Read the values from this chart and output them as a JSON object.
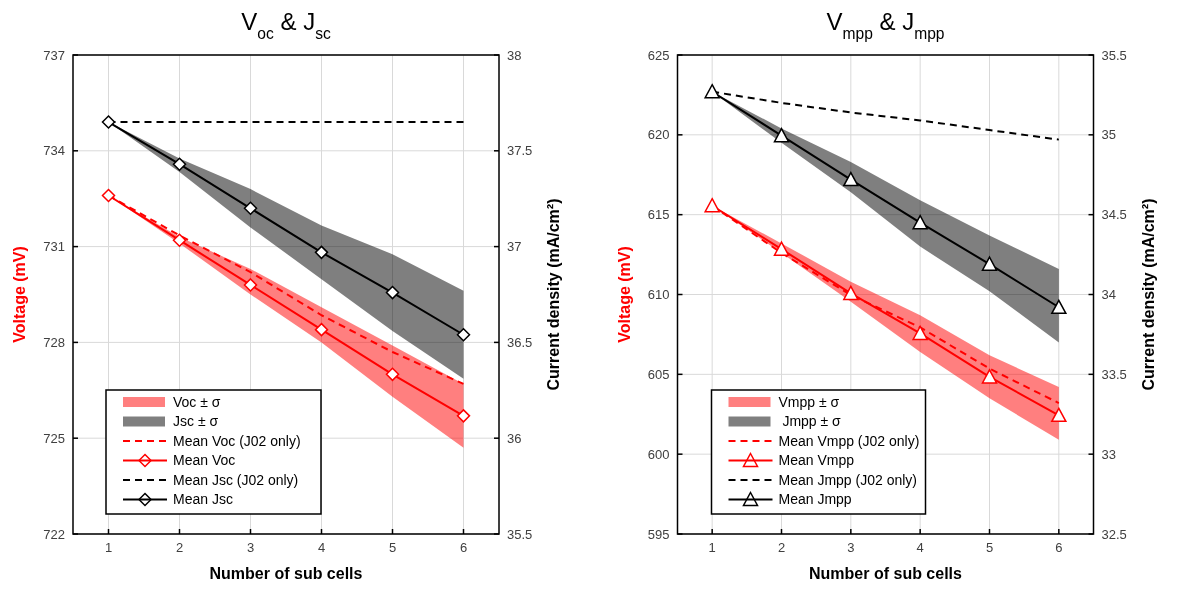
{
  "chart_data": [
    {
      "type": "line",
      "title": "V$_{oc}$ & J$_{sc}$",
      "xlabel": "Number of sub cells",
      "ylabel": "Voltage (mV)",
      "y2label": "Current density (mA/cm²)",
      "x": [
        1,
        2,
        3,
        4,
        5,
        6
      ],
      "xlim": [
        0.5,
        6.5
      ],
      "xticks": [
        1,
        2,
        3,
        4,
        5,
        6
      ],
      "ylim": [
        722,
        737
      ],
      "yticks": [
        722,
        725,
        728,
        731,
        734,
        737
      ],
      "y2lim": [
        35.5,
        38
      ],
      "y2ticks": [
        35.5,
        36,
        36.5,
        37,
        37.5,
        38
      ],
      "grid": true,
      "legend": "bottom left",
      "annotations": [
        "Voc ± σ",
        "Jsc ± σ"
      ],
      "series": [
        {
          "name": "Mean Voc (J02 only)",
          "type": "line",
          "color": "#ff0000",
          "line_style": "dashed",
          "marker": "none",
          "values": [
            732.6,
            731.35,
            730.2,
            728.85,
            727.7,
            726.7
          ]
        },
        {
          "name": "Mean Voc",
          "type": "line",
          "color": "#ff0000",
          "line_style": "solid",
          "marker": "diamond",
          "values": [
            732.6,
            731.2,
            729.8,
            728.4,
            727.0,
            725.7
          ],
          "lower": [
            732.6,
            731.1,
            729.5,
            728.0,
            726.3,
            724.7
          ],
          "upper": [
            732.6,
            731.3,
            730.3,
            729.1,
            727.9,
            726.7
          ]
        },
        {
          "name": "Mean Jsc (J02 only)",
          "type": "line",
          "axis": "y2",
          "color": "#000000",
          "line_style": "dashed",
          "marker": "none",
          "values": [
            37.65,
            37.65,
            37.65,
            37.65,
            37.65,
            37.65
          ]
        },
        {
          "name": "Mean Jsc",
          "type": "line",
          "axis": "y2",
          "color": "#000000",
          "line_style": "solid",
          "marker": "diamond",
          "values": [
            37.65,
            37.43,
            37.2,
            36.97,
            36.76,
            36.54
          ],
          "lower": [
            37.65,
            37.39,
            37.1,
            36.83,
            36.56,
            36.31
          ],
          "upper": [
            37.65,
            37.46,
            37.3,
            37.11,
            36.96,
            36.77
          ]
        }
      ]
    },
    {
      "type": "line",
      "title": "V$_{mpp}$ & J$_{mpp}$",
      "xlabel": "Number of sub cells",
      "ylabel": "Voltage (mV)",
      "y2label": "Current density (mA/cm²)",
      "x": [
        1,
        2,
        3,
        4,
        5,
        6
      ],
      "xlim": [
        0.5,
        6.5
      ],
      "xticks": [
        1,
        2,
        3,
        4,
        5,
        6
      ],
      "ylim": [
        595,
        625
      ],
      "yticks": [
        595,
        600,
        605,
        610,
        615,
        620,
        625
      ],
      "y2lim": [
        32.5,
        35.5
      ],
      "y2ticks": [
        32.5,
        33,
        33.5,
        34,
        34.5,
        35,
        35.5
      ],
      "grid": true,
      "legend": "bottom left",
      "annotations": [
        "Vmpp ± σ",
        " Jmpp ± σ"
      ],
      "series": [
        {
          "name": "Mean Vmpp (J02 only)",
          "type": "line",
          "color": "#ff0000",
          "line_style": "dashed",
          "marker": "none",
          "values": [
            615.56,
            612.6,
            609.97,
            607.94,
            605.36,
            603.2
          ]
        },
        {
          "name": "Mean Vmpp",
          "type": "line",
          "color": "#ff0000",
          "line_style": "solid",
          "marker": "triangle",
          "values": [
            615.56,
            612.84,
            610.07,
            607.56,
            604.84,
            602.43
          ],
          "lower": [
            615.56,
            612.6,
            609.55,
            606.4,
            603.5,
            600.9
          ],
          "upper": [
            615.56,
            613.2,
            610.8,
            608.7,
            606.2,
            604.2
          ]
        },
        {
          "name": "Mean Jmpp (J02 only)",
          "type": "line",
          "axis": "y2",
          "color": "#000000",
          "line_style": "dashed",
          "marker": "none",
          "values": [
            35.27,
            35.2,
            35.14,
            35.09,
            35.03,
            34.97
          ]
        },
        {
          "name": "Mean Jmpp",
          "type": "line",
          "axis": "y2",
          "color": "#000000",
          "line_style": "solid",
          "marker": "triangle",
          "values": [
            35.27,
            34.995,
            34.72,
            34.45,
            34.19,
            33.92
          ],
          "lower": [
            35.27,
            34.95,
            34.64,
            34.3,
            34.02,
            33.7
          ],
          "upper": [
            35.27,
            35.04,
            34.83,
            34.59,
            34.37,
            34.16
          ]
        }
      ]
    }
  ]
}
